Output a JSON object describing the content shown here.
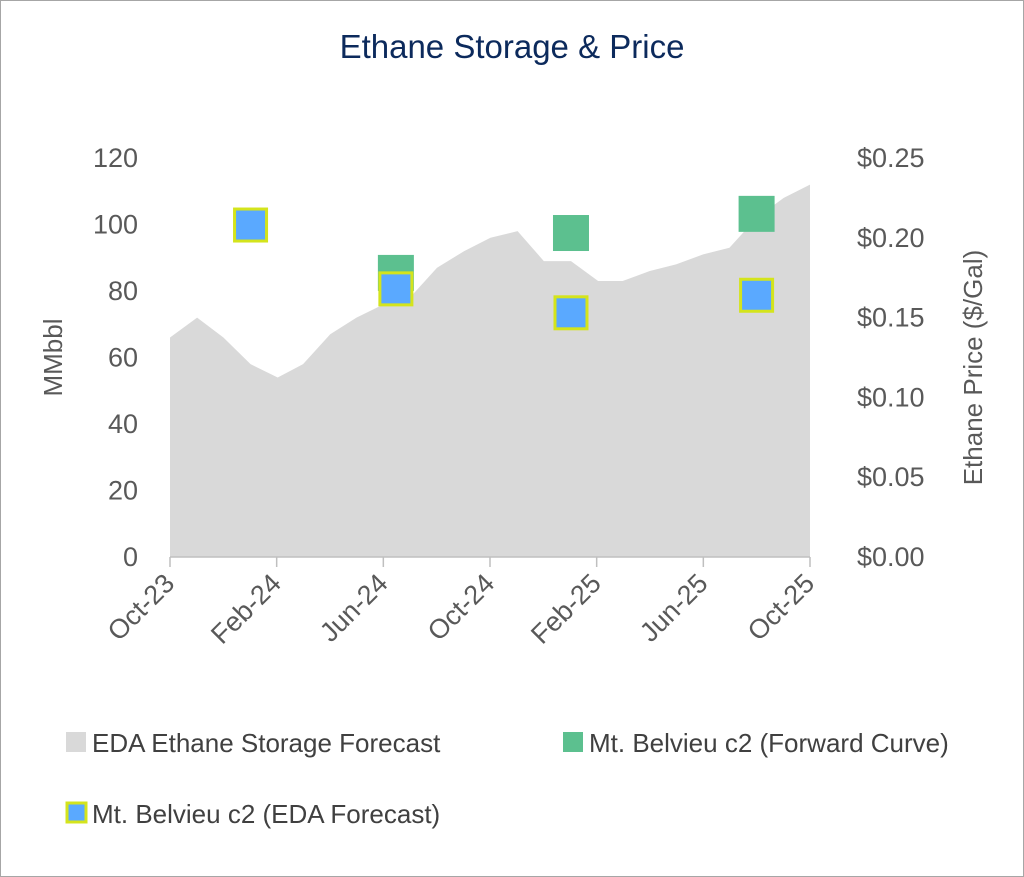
{
  "chart_data": {
    "type": "area+scatter",
    "title": "Ethane Storage & Price",
    "y_left": {
      "label": "MMbbl",
      "range": [
        0,
        120
      ],
      "ticks": [
        "0",
        "20",
        "40",
        "60",
        "80",
        "100",
        "120"
      ]
    },
    "y_right": {
      "label": "Ethane Price ($/Gal)",
      "range": [
        0,
        0.25
      ],
      "ticks": [
        "$0.00",
        "$0.05",
        "$0.10",
        "$0.15",
        "$0.20",
        "$0.25"
      ]
    },
    "x_axis": {
      "type": "date",
      "range": [
        "2023-10-01",
        "2025-10-01"
      ],
      "tick_labels": [
        "Oct-23",
        "Feb-24",
        "Jun-24",
        "Oct-24",
        "Feb-25",
        "Jun-25",
        "Oct-25"
      ]
    },
    "series": [
      {
        "name": "EDA Ethane Storage Forecast",
        "type": "area",
        "axis": "left",
        "color": "#d9d9d9",
        "x": [
          "2023-10-01",
          "2023-11-01",
          "2023-12-01",
          "2024-01-01",
          "2024-02-01",
          "2024-03-01",
          "2024-04-01",
          "2024-05-01",
          "2024-06-01",
          "2024-07-01",
          "2024-08-01",
          "2024-09-01",
          "2024-10-01",
          "2024-11-01",
          "2024-12-01",
          "2025-01-01",
          "2025-02-01",
          "2025-03-01",
          "2025-04-01",
          "2025-05-01",
          "2025-06-01",
          "2025-07-01",
          "2025-08-01",
          "2025-09-01",
          "2025-10-01"
        ],
        "y": [
          66,
          72,
          66,
          58,
          54,
          58,
          67,
          72,
          76,
          78,
          87,
          92,
          96,
          98,
          89,
          89,
          83,
          83,
          86,
          88,
          91,
          93,
          102,
          108,
          112
        ]
      },
      {
        "name": "Mt. Belvieu c2 (Forward Curve)",
        "type": "scatter",
        "axis": "right",
        "color": "#5cc08f",
        "x": [
          "2024-06-15",
          "2025-01-01",
          "2025-08-01"
        ],
        "y": [
          0.178,
          0.203,
          0.215
        ]
      },
      {
        "name": "Mt. Belvieu c2 (EDA Forecast)",
        "type": "scatter",
        "axis": "right",
        "color": "#5aa9ff",
        "border_color": "#d4e41c",
        "x": [
          "2024-01-01",
          "2024-06-15",
          "2025-01-01",
          "2025-08-01"
        ],
        "y": [
          0.208,
          0.168,
          0.153,
          0.164
        ]
      }
    ],
    "legend": {
      "position": "bottom"
    }
  }
}
